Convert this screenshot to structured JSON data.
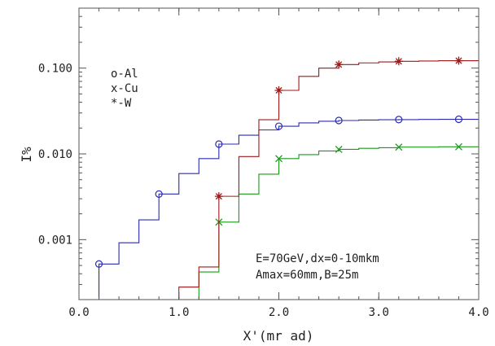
{
  "chart_data": {
    "type": "line",
    "xlabel": "X'(mr ad)",
    "ylabel": "I%",
    "xlim": [
      0.0,
      4.0
    ],
    "ylim": [
      0.0002,
      0.5
    ],
    "ylog": true,
    "grid": false,
    "legend_position": "top-left",
    "x_ticks": [
      {
        "value": 0.0,
        "label": "0.0"
      },
      {
        "value": 1.0,
        "label": "1.0"
      },
      {
        "value": 2.0,
        "label": "2.0"
      },
      {
        "value": 3.0,
        "label": "3.0"
      },
      {
        "value": 4.0,
        "label": "4.0"
      }
    ],
    "y_ticks": [
      {
        "value": 0.001,
        "label": "0.001"
      },
      {
        "value": 0.01,
        "label": "0.010"
      },
      {
        "value": 0.1,
        "label": "0.100"
      }
    ],
    "annotations": [
      "E=70GeV,dx=0-10mkm",
      "Amax=60mm,B=25m"
    ],
    "series": [
      {
        "name": "o-Al",
        "color": "#2b2bb0",
        "marker": "circle",
        "x": [
          0.2,
          0.4,
          0.6,
          0.8,
          1.0,
          1.2,
          1.4,
          1.6,
          1.8,
          2.0,
          2.2,
          2.4,
          2.6,
          2.8,
          3.0,
          3.2,
          3.4,
          3.6,
          3.8,
          4.0
        ],
        "y": [
          0.00052,
          0.00092,
          0.0017,
          0.0034,
          0.0059,
          0.0088,
          0.013,
          0.0165,
          0.019,
          0.021,
          0.023,
          0.024,
          0.0245,
          0.0248,
          0.025,
          0.0251,
          0.0252,
          0.0253,
          0.0253,
          0.0253
        ],
        "marker_x": [
          0.2,
          0.8,
          1.4,
          2.0,
          2.6,
          3.2,
          3.8
        ]
      },
      {
        "name": "x-Cu",
        "color": "#1a9a1a",
        "marker": "x",
        "x": [
          1.2,
          1.4,
          1.6,
          1.8,
          2.0,
          2.2,
          2.4,
          2.6,
          2.8,
          3.0,
          3.2,
          3.4,
          3.6,
          3.8,
          4.0
        ],
        "y": [
          0.00042,
          0.0016,
          0.0034,
          0.0058,
          0.0088,
          0.0098,
          0.0108,
          0.0113,
          0.0116,
          0.0118,
          0.012,
          0.012,
          0.0121,
          0.0121,
          0.0121
        ],
        "marker_x": [
          1.4,
          2.0,
          2.6,
          3.2,
          3.8
        ]
      },
      {
        "name": "*-W",
        "color": "#a01818",
        "marker": "star",
        "x": [
          1.0,
          1.2,
          1.4,
          1.6,
          1.8,
          2.0,
          2.2,
          2.4,
          2.6,
          2.8,
          3.0,
          3.2,
          3.4,
          3.6,
          3.8,
          4.0
        ],
        "y": [
          0.00028,
          0.00048,
          0.0032,
          0.0093,
          0.025,
          0.055,
          0.08,
          0.1,
          0.11,
          0.115,
          0.118,
          0.12,
          0.121,
          0.122,
          0.122,
          0.122
        ],
        "marker_x": [
          1.4,
          2.0,
          2.6,
          3.2,
          3.8
        ]
      }
    ]
  }
}
